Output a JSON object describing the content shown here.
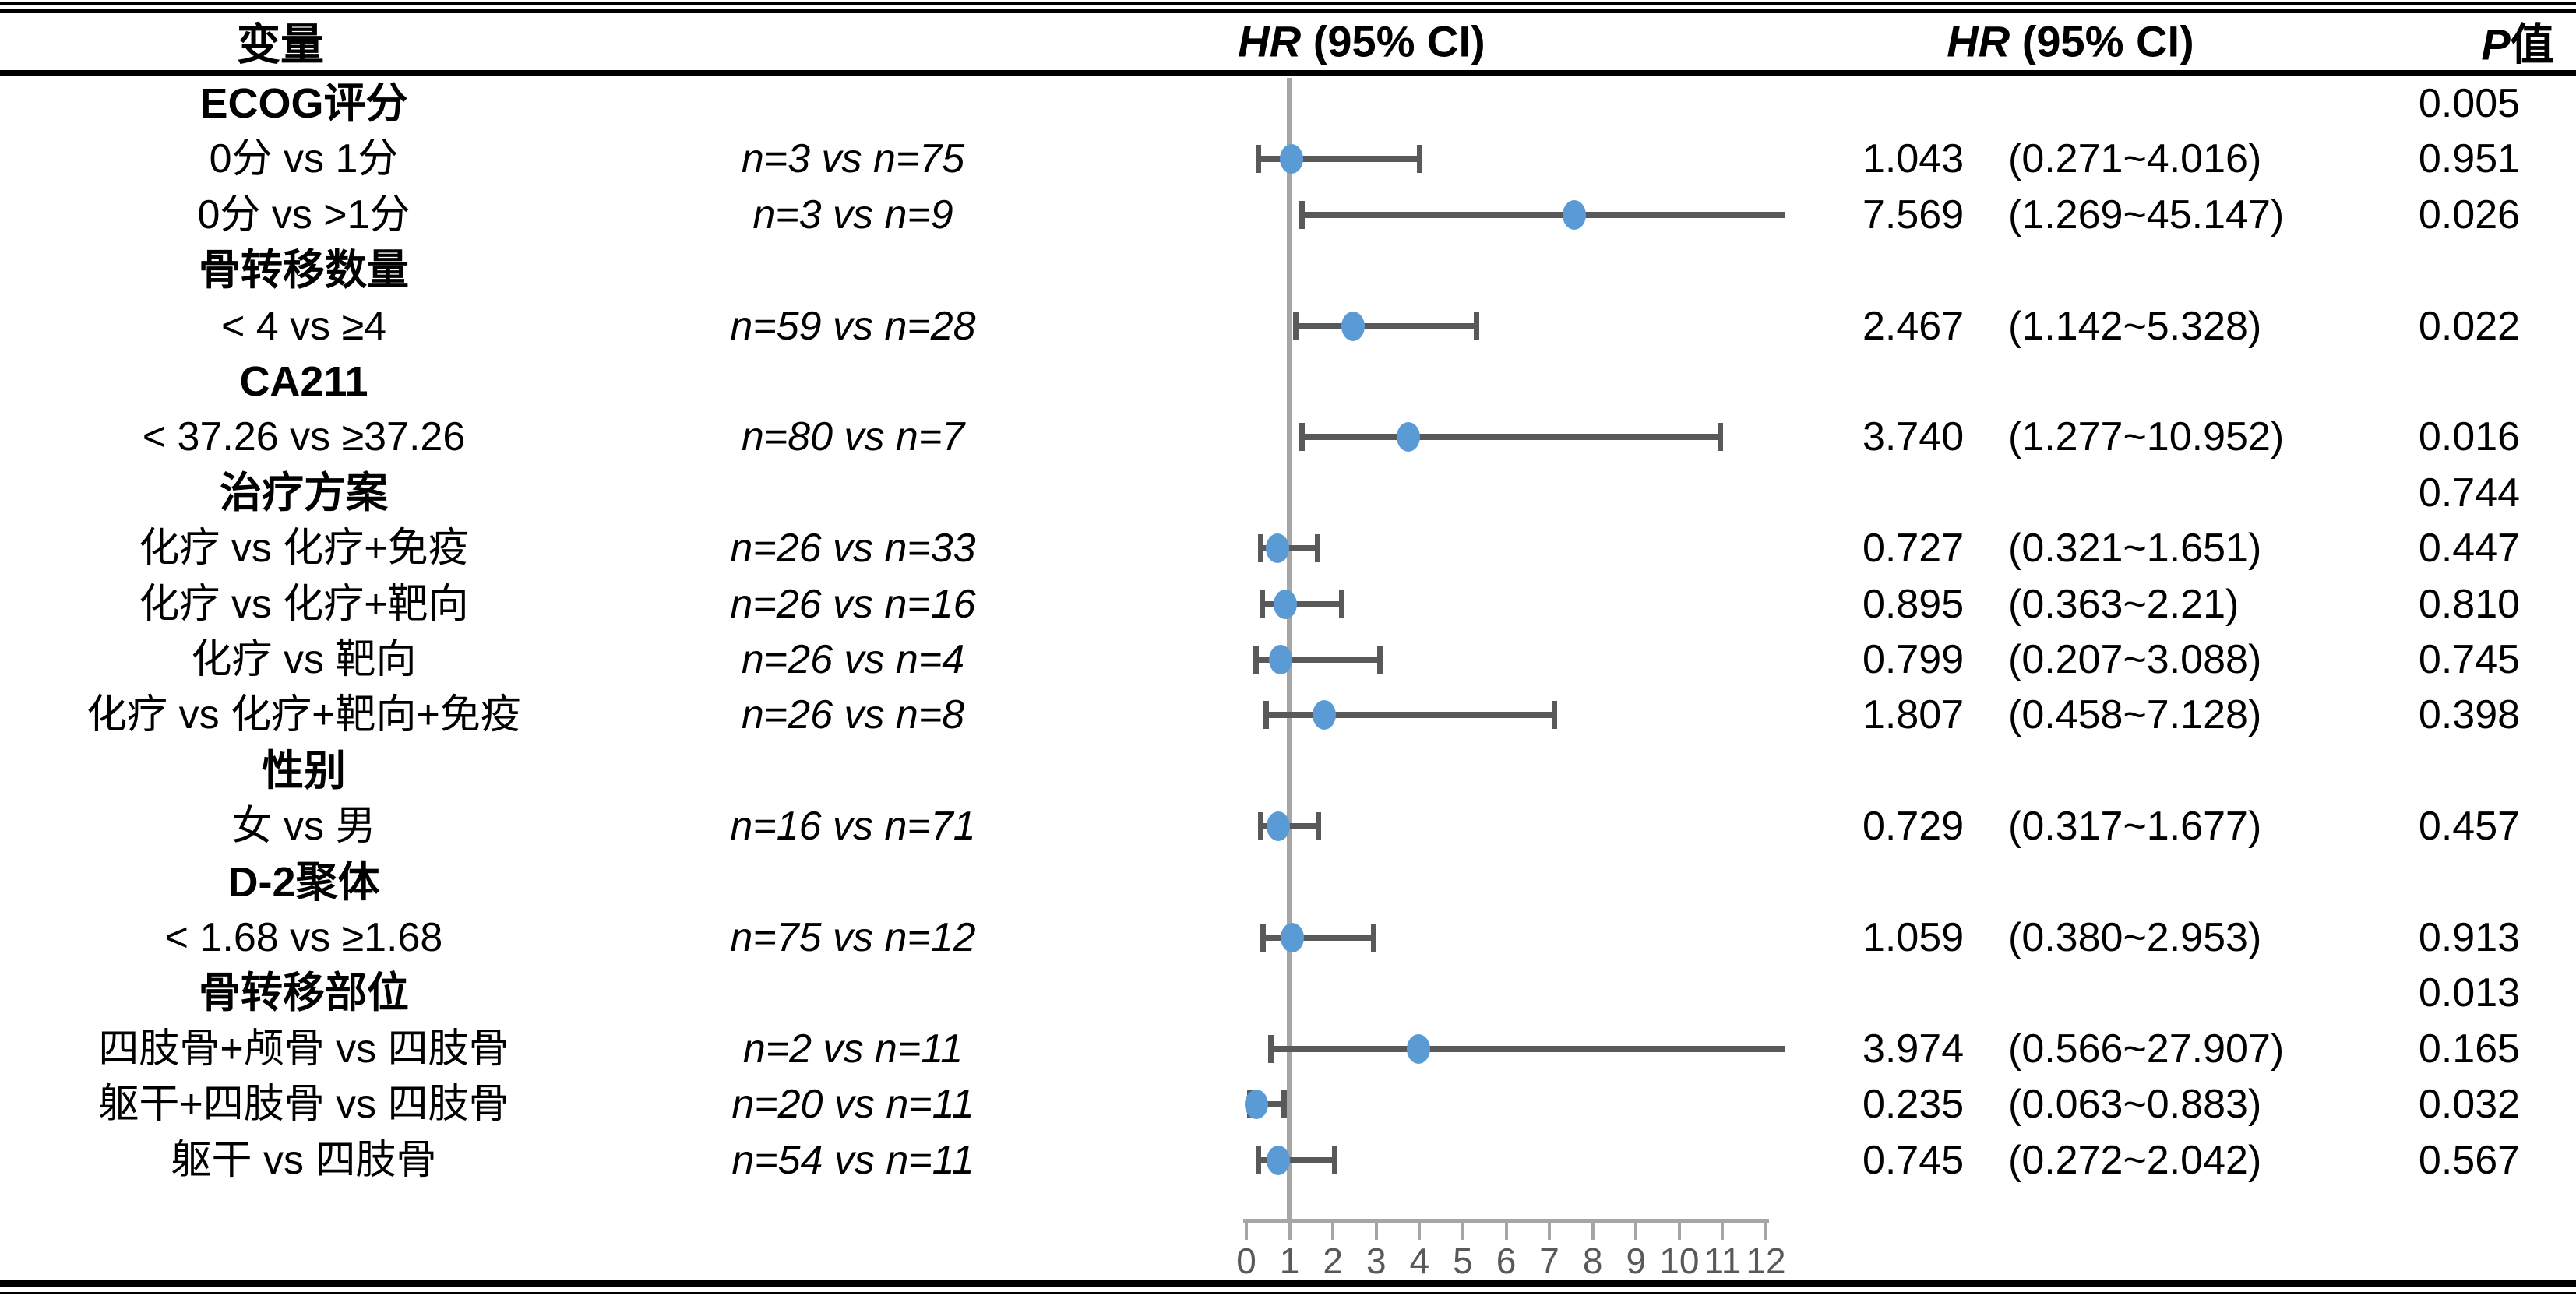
{
  "header": {
    "variable": "变量",
    "hr_italic": "HR",
    "hr_rest": " (95% CI)",
    "p_italic": "P",
    "p_rest": "值"
  },
  "colors": {
    "marker_blue": "#5B9BD5",
    "whisker_grey": "#595959",
    "axis_grey": "#A6A6A6",
    "text_black": "#000000",
    "tick_label_grey": "#595959"
  },
  "chart_data": {
    "type": "forest",
    "title": "",
    "xlabel": "",
    "x_axis": {
      "min": 0,
      "max": 12,
      "reference_line": 1,
      "ticks": [
        "0",
        "1",
        "2",
        "3",
        "4",
        "5",
        "6",
        "7",
        "8",
        "9",
        "10",
        "11",
        "12"
      ]
    },
    "legend": null,
    "grid": false,
    "rows": [
      {
        "label": "ECOG评分",
        "group": true,
        "n": "",
        "hr": null,
        "ci": null,
        "hr_text": "",
        "ci_text": "",
        "p": "0.005"
      },
      {
        "label": "0分 vs 1分",
        "group": false,
        "n": "n=3 vs n=75",
        "hr": 1.043,
        "ci": [
          0.271,
          4.016
        ],
        "hr_text": "1.043",
        "ci_text": "(0.271~4.016)",
        "p": "0.951"
      },
      {
        "label": "0分 vs >1分",
        "group": false,
        "n": "n=3 vs n=9",
        "hr": 7.569,
        "ci": [
          1.269,
          45.147
        ],
        "hr_text": "7.569",
        "ci_text": "(1.269~45.147)",
        "p": "0.026"
      },
      {
        "label": "骨转移数量",
        "group": true,
        "n": "",
        "hr": null,
        "ci": null,
        "hr_text": "",
        "ci_text": "",
        "p": ""
      },
      {
        "label": "< 4 vs ≥4",
        "group": false,
        "n": "n=59 vs n=28",
        "hr": 2.467,
        "ci": [
          1.142,
          5.328
        ],
        "hr_text": "2.467",
        "ci_text": "(1.142~5.328)",
        "p": "0.022"
      },
      {
        "label": "CA211",
        "group": true,
        "n": "",
        "hr": null,
        "ci": null,
        "hr_text": "",
        "ci_text": "",
        "p": ""
      },
      {
        "label": "< 37.26 vs ≥37.26",
        "group": false,
        "n": "n=80 vs n=7",
        "hr": 3.74,
        "ci": [
          1.277,
          10.952
        ],
        "hr_text": "3.740",
        "ci_text": "(1.277~10.952)",
        "p": "0.016"
      },
      {
        "label": "治疗方案",
        "group": true,
        "n": "",
        "hr": null,
        "ci": null,
        "hr_text": "",
        "ci_text": "",
        "p": "0.744"
      },
      {
        "label": "化疗 vs 化疗+免疫",
        "group": false,
        "n": "n=26 vs n=33",
        "hr": 0.727,
        "ci": [
          0.321,
          1.651
        ],
        "hr_text": "0.727",
        "ci_text": "(0.321~1.651)",
        "p": "0.447"
      },
      {
        "label": "化疗 vs 化疗+靶向",
        "group": false,
        "n": "n=26 vs n=16",
        "hr": 0.895,
        "ci": [
          0.363,
          2.21
        ],
        "hr_text": "0.895",
        "ci_text": "(0.363~2.21)",
        "p": "0.810"
      },
      {
        "label": "化疗 vs 靶向",
        "group": false,
        "n": "n=26 vs n=4",
        "hr": 0.799,
        "ci": [
          0.207,
          3.088
        ],
        "hr_text": "0.799",
        "ci_text": "(0.207~3.088)",
        "p": "0.745"
      },
      {
        "label": "化疗 vs 化疗+靶向+免疫",
        "group": false,
        "n": "n=26 vs n=8",
        "hr": 1.807,
        "ci": [
          0.458,
          7.128
        ],
        "hr_text": "1.807",
        "ci_text": "(0.458~7.128)",
        "p": "0.398"
      },
      {
        "label": "性别",
        "group": true,
        "n": "",
        "hr": null,
        "ci": null,
        "hr_text": "",
        "ci_text": "",
        "p": ""
      },
      {
        "label": "女 vs 男",
        "group": false,
        "n": "n=16 vs n=71",
        "hr": 0.729,
        "ci": [
          0.317,
          1.677
        ],
        "hr_text": "0.729",
        "ci_text": "(0.317~1.677)",
        "p": "0.457"
      },
      {
        "label": "D-2聚体",
        "group": true,
        "n": "",
        "hr": null,
        "ci": null,
        "hr_text": "",
        "ci_text": "",
        "p": ""
      },
      {
        "label": "< 1.68 vs ≥1.68",
        "group": false,
        "n": "n=75 vs n=12",
        "hr": 1.059,
        "ci": [
          0.38,
          2.953
        ],
        "hr_text": "1.059",
        "ci_text": "(0.380~2.953)",
        "p": "0.913"
      },
      {
        "label": "骨转移部位",
        "group": true,
        "n": "",
        "hr": null,
        "ci": null,
        "hr_text": "",
        "ci_text": "",
        "p": "0.013"
      },
      {
        "label": "四肢骨+颅骨 vs 四肢骨",
        "group": false,
        "n": "n=2 vs n=11",
        "hr": 3.974,
        "ci": [
          0.566,
          27.907
        ],
        "hr_text": "3.974",
        "ci_text": "(0.566~27.907)",
        "p": "0.165"
      },
      {
        "label": "躯干+四肢骨 vs 四肢骨",
        "group": false,
        "n": "n=20 vs n=11",
        "hr": 0.235,
        "ci": [
          0.063,
          0.883
        ],
        "hr_text": "0.235",
        "ci_text": "(0.063~0.883)",
        "p": "0.032"
      },
      {
        "label": "躯干 vs 四肢骨",
        "group": false,
        "n": "n=54 vs n=11",
        "hr": 0.745,
        "ci": [
          0.272,
          2.042
        ],
        "hr_text": "0.745",
        "ci_text": "(0.272~2.042)",
        "p": "0.567"
      }
    ]
  }
}
